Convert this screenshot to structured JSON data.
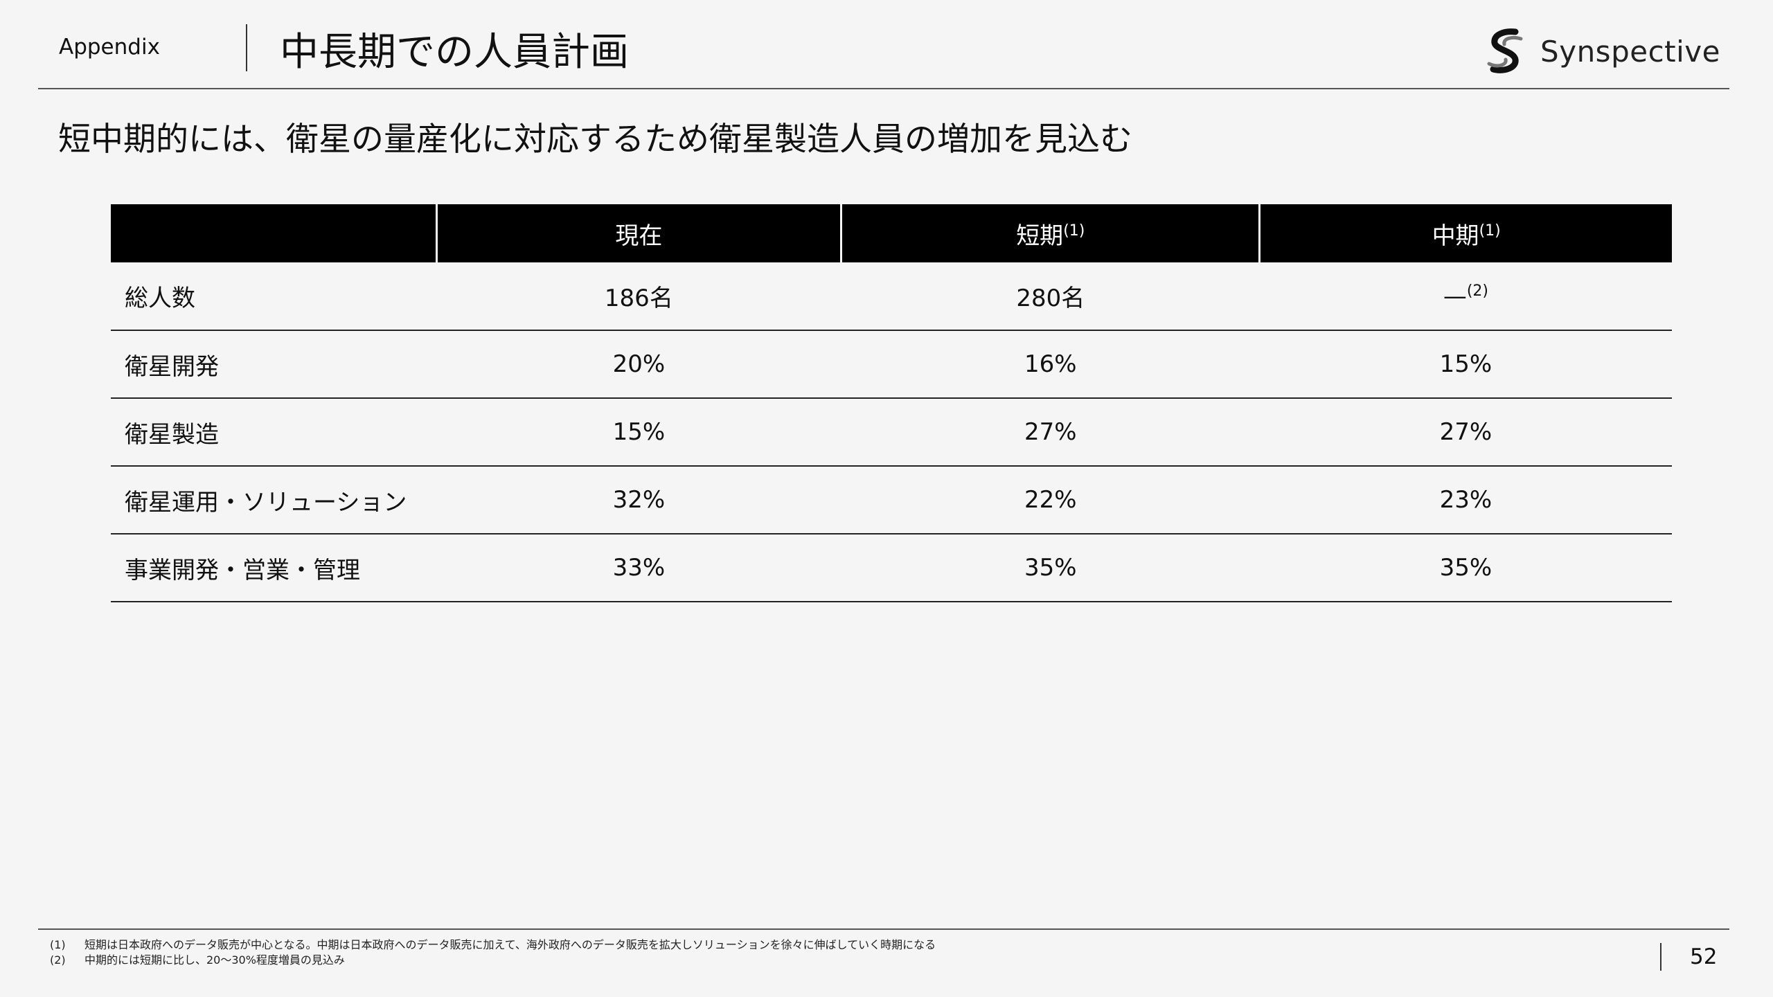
{
  "header": {
    "section": "Appendix",
    "title": "中長期での人員計画",
    "logo_text": "Synspective",
    "logo_icon": "synspective-s-logo-icon"
  },
  "subtitle": "短中期的には、衛星の量産化に対応するため衛星製造人員の増加を見込む",
  "table": {
    "columns": [
      {
        "label": "現在",
        "note": ""
      },
      {
        "label": "短期",
        "note": "(1)"
      },
      {
        "label": "中期",
        "note": "(1)"
      }
    ],
    "rows": [
      {
        "label": "総人数",
        "values": [
          "186名",
          "280名",
          "—"
        ],
        "notes": [
          "",
          "",
          "(2)"
        ]
      },
      {
        "label": "衛星開発",
        "values": [
          "20%",
          "16%",
          "15%"
        ]
      },
      {
        "label": "衛星製造",
        "values": [
          "15%",
          "27%",
          "27%"
        ]
      },
      {
        "label": "衛星運用・ソリューション",
        "values": [
          "32%",
          "22%",
          "23%"
        ]
      },
      {
        "label": "事業開発・営業・管理",
        "values": [
          "33%",
          "35%",
          "35%"
        ]
      }
    ]
  },
  "footnotes": [
    {
      "num": "(1)",
      "text": "短期は日本政府へのデータ販売が中心となる。中期は日本政府へのデータ販売に加えて、海外政府へのデータ販売を拡大しソリューションを徐々に伸ばしていく時期になる"
    },
    {
      "num": "(2)",
      "text": "中期的には短期に比し、20～30%程度増員の見込み"
    }
  ],
  "page_number": "52"
}
